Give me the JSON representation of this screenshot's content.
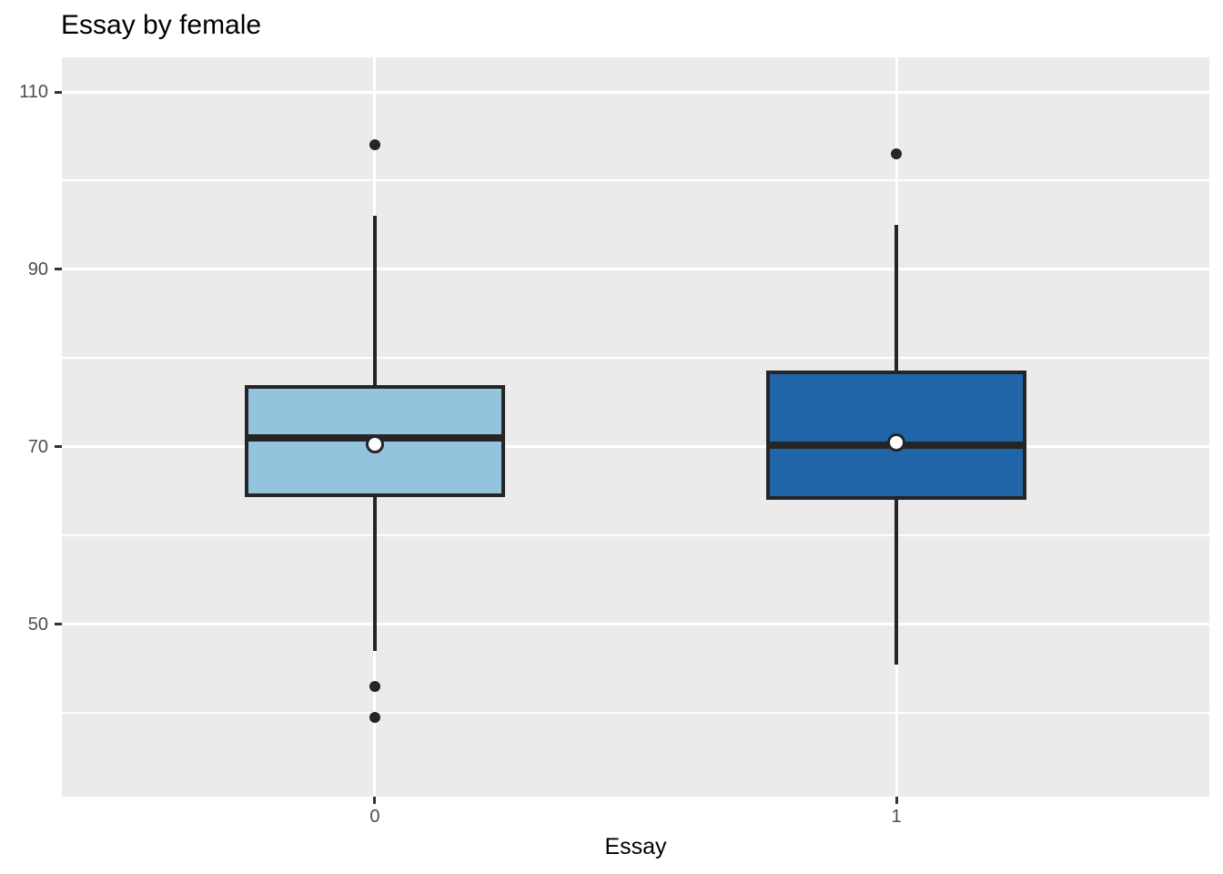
{
  "title": "Essay by female",
  "x_axis": {
    "label": "Essay",
    "tick_labels": [
      "0",
      "1"
    ]
  },
  "y_axis": {
    "tick_labels": [
      "110",
      "90",
      "70",
      "50"
    ]
  },
  "chart_data": {
    "type": "boxplot",
    "title": "Essay by female",
    "xlabel": "Essay",
    "ylabel": "",
    "categories": [
      "0",
      "1"
    ],
    "ylim": [
      30.6,
      113.9
    ],
    "y_major_ticks": [
      50,
      70,
      90,
      110
    ],
    "y_minor_ticks": [
      40,
      60,
      80,
      100
    ],
    "grid": "on",
    "legend": "none",
    "box_width_units": 0.5,
    "series": [
      {
        "category": "0",
        "fill": "#94C4DD",
        "q1": 64.3,
        "median": 71.0,
        "q3": 77.0,
        "whisker_low": 47.0,
        "whisker_high": 96.0,
        "mean": 70.3,
        "outliers": [
          104.1,
          43.0,
          39.5
        ]
      },
      {
        "category": "1",
        "fill": "#2065A8",
        "q1": 64.0,
        "median": 70.2,
        "q3": 78.6,
        "whisker_low": 45.5,
        "whisker_high": 95.0,
        "mean": 70.5,
        "outliers": [
          103.0
        ]
      }
    ],
    "colors": {
      "panel_background": "#EBEBEB",
      "gridline": "#FFFFFF",
      "box_stroke": "#252525",
      "outlier": "#252525",
      "mean_fill": "#FFFFFF",
      "axis_text": "#4D4D4D",
      "tick_mark": "#333333",
      "title_text": "#000000"
    }
  }
}
